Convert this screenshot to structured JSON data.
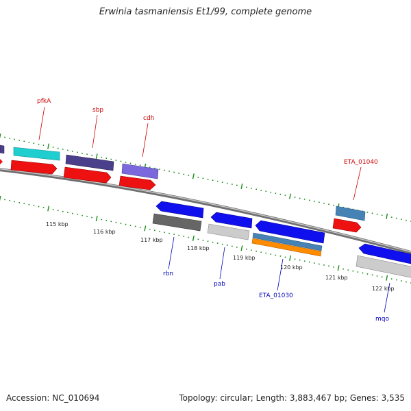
{
  "title": "Erwinia tasmaniensis Et1/99, complete genome",
  "footer": {
    "accession": "Accession: NC_010694",
    "summary": "Topology: circular; Length: 3,883,467 bp; Genes: 3,535"
  },
  "colors": {
    "backbone": "#8c8c8c",
    "tick": "#1a8a1a",
    "label_forward": "#cc0000",
    "label_reverse": "#0000bb"
  },
  "tick_labels": [
    "115 kbp",
    "116 kbp",
    "117 kbp",
    "118 kbp",
    "119 kbp",
    "120 kbp",
    "121 kbp",
    "122 kbp"
  ],
  "gene_labels": [
    {
      "name": "pfkA",
      "strand": "forward"
    },
    {
      "name": "sbp",
      "strand": "forward"
    },
    {
      "name": "cdh",
      "strand": "forward"
    },
    {
      "name": "ETA_01040",
      "strand": "forward"
    },
    {
      "name": "rbn",
      "strand": "reverse"
    },
    {
      "name": "pab",
      "strand": "reverse"
    },
    {
      "name": "ETA_01030",
      "strand": "reverse"
    },
    {
      "name": "mqo",
      "strand": "reverse"
    }
  ]
}
